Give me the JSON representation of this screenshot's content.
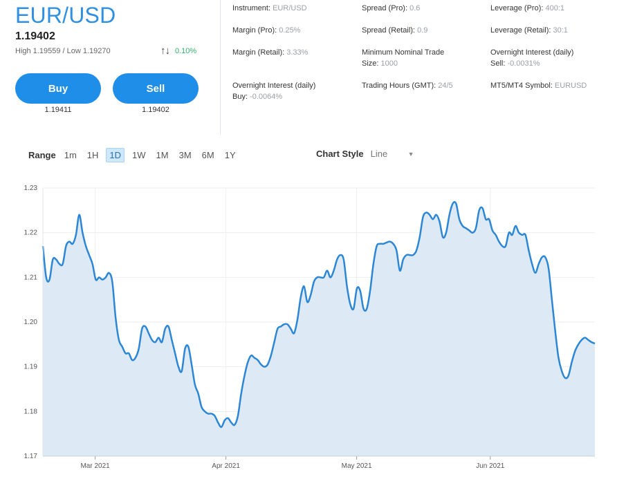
{
  "header": {
    "symbol": "EUR/USD",
    "price": "1.19402",
    "high_low": "High 1.19559 / Low 1.19270",
    "change_icon": "up-down-arrows-icon",
    "change_pct": "0.10%"
  },
  "trade": {
    "buy_label": "Buy",
    "sell_label": "Sell",
    "buy_price": "1.19411",
    "sell_price": "1.19402"
  },
  "info": {
    "instrument_label": "Instrument:",
    "instrument_value": "EUR/USD",
    "margin_pro_label": "Margin (Pro):",
    "margin_pro_value": "0.25%",
    "margin_retail_label": "Margin (Retail):",
    "margin_retail_value": "3.33%",
    "overnight_buy_label": "Overnight Interest (daily)",
    "overnight_buy_sub": "Buy:",
    "overnight_buy_value": "-0.0064%",
    "spread_pro_label": "Spread (Pro):",
    "spread_pro_value": "0.6",
    "spread_retail_label": "Spread (Retail):",
    "spread_retail_value": "0.9",
    "min_nominal_label": "Minimum Nominal Trade",
    "min_nominal_sub": "Size:",
    "min_nominal_value": "1000",
    "trading_hours_label": "Trading Hours (GMT):",
    "trading_hours_value": "24/5",
    "leverage_pro_label": "Leverage (Pro):",
    "leverage_pro_value": "400:1",
    "leverage_retail_label": "Leverage (Retail):",
    "leverage_retail_value": "30:1",
    "overnight_sell_label": "Overnight Interest (daily)",
    "overnight_sell_sub": "Sell:",
    "overnight_sell_value": "-0.0031%",
    "mt_symbol_label": "MT5/MT4 Symbol:",
    "mt_symbol_value": "EURUSD"
  },
  "controls": {
    "range_label": "Range",
    "range_options": [
      "1m",
      "1H",
      "1D",
      "1W",
      "1M",
      "3M",
      "6M",
      "1Y"
    ],
    "range_active": "1D",
    "chart_style_label": "Chart Style",
    "chart_style_value": "Line"
  },
  "colors": {
    "accent": "#1e8ee9",
    "line": "#2b86d6",
    "fill": "#dde9f5",
    "positive": "#2fb36b"
  },
  "chart_data": {
    "type": "area",
    "ylim": [
      1.17,
      1.23
    ],
    "yticks": [
      "1.17",
      "1.18",
      "1.19",
      "1.20",
      "1.21",
      "1.22",
      "1.23"
    ],
    "xticks": [
      {
        "label": "Mar 2021",
        "day": 18
      },
      {
        "label": "Apr 2021",
        "day": 63
      },
      {
        "label": "May 2021",
        "day": 108
      },
      {
        "label": "Jun 2021",
        "day": 154
      }
    ],
    "x_days": 190,
    "values": [
      1.217,
      1.21,
      1.2095,
      1.214,
      1.214,
      1.213,
      1.213,
      1.217,
      1.218,
      1.2175,
      1.2195,
      1.224,
      1.22,
      1.217,
      1.215,
      1.213,
      1.2095,
      1.21,
      1.2095,
      1.21,
      1.211,
      1.209,
      1.201,
      1.196,
      1.1945,
      1.193,
      1.193,
      1.1915,
      1.192,
      1.194,
      1.1985,
      1.199,
      1.1975,
      1.196,
      1.1955,
      1.1965,
      1.1955,
      1.1985,
      1.199,
      1.196,
      1.193,
      1.19,
      1.189,
      1.194,
      1.1945,
      1.1905,
      1.186,
      1.184,
      1.181,
      1.18,
      1.1795,
      1.1795,
      1.179,
      1.1775,
      1.1765,
      1.178,
      1.1785,
      1.1775,
      1.177,
      1.179,
      1.184,
      1.188,
      1.191,
      1.1925,
      1.192,
      1.1915,
      1.1905,
      1.19,
      1.1905,
      1.1925,
      1.1955,
      1.1985,
      1.199,
      1.1995,
      1.1995,
      1.1985,
      1.1975,
      1.2005,
      1.2055,
      1.208,
      1.2045,
      1.206,
      1.209,
      1.21,
      1.21,
      1.21,
      1.2115,
      1.21,
      1.2115,
      1.214,
      1.215,
      1.214,
      1.208,
      1.204,
      1.203,
      1.2075,
      1.207,
      1.203,
      1.203,
      1.207,
      1.213,
      1.217,
      1.2175,
      1.2175,
      1.2178,
      1.218,
      1.2175,
      1.216,
      1.2115,
      1.214,
      1.215,
      1.215,
      1.215,
      1.216,
      1.219,
      1.2235,
      1.2245,
      1.224,
      1.223,
      1.224,
      1.2225,
      1.219,
      1.22,
      1.224,
      1.2265,
      1.2265,
      1.223,
      1.2215,
      1.221,
      1.2205,
      1.22,
      1.221,
      1.225,
      1.2255,
      1.223,
      1.223,
      1.2205,
      1.2195,
      1.218,
      1.217,
      1.217,
      1.22,
      1.2195,
      1.2215,
      1.22,
      1.2195,
      1.2195,
      1.216,
      1.213,
      1.211,
      1.213,
      1.2145,
      1.2145,
      1.212,
      1.205,
      1.198,
      1.192,
      1.189,
      1.1875,
      1.188,
      1.191,
      1.1935,
      1.195,
      1.196,
      1.1965,
      1.196,
      1.1955,
      1.1952
    ]
  }
}
